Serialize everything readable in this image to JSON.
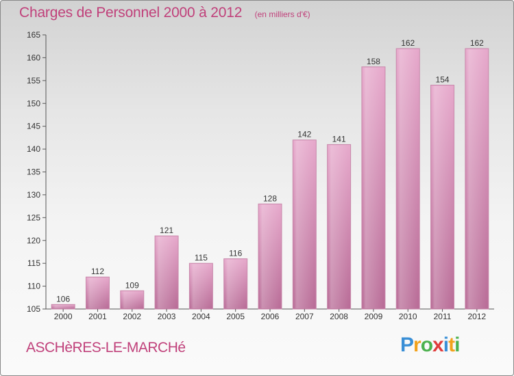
{
  "title": "Charges de Personnel 2000 à 2012",
  "subtitle": "(en milliers d'€)",
  "commune": "ASCHèRES-LE-MARCHé",
  "logo": {
    "p": "P",
    "r": "r",
    "o": "o",
    "x": "x",
    "i1": "i",
    "t": "t",
    "i2": "i"
  },
  "colors": {
    "bar": "#d98cb5",
    "bar_dark": "#b5628f",
    "title": "#c0407a"
  },
  "chart_data": {
    "type": "bar",
    "title": "Charges de Personnel 2000 à 2012",
    "subtitle": "(en milliers d'€)",
    "xlabel": "",
    "ylabel": "",
    "categories": [
      "2000",
      "2001",
      "2002",
      "2003",
      "2004",
      "2005",
      "2006",
      "2007",
      "2008",
      "2009",
      "2010",
      "2011",
      "2012"
    ],
    "values": [
      106,
      112,
      109,
      121,
      115,
      116,
      128,
      142,
      141,
      158,
      162,
      154,
      162
    ],
    "ylim": [
      105,
      165
    ],
    "yticks": [
      105,
      110,
      115,
      120,
      125,
      130,
      135,
      140,
      145,
      150,
      155,
      160,
      165
    ],
    "grid": false,
    "data_labels": true
  }
}
